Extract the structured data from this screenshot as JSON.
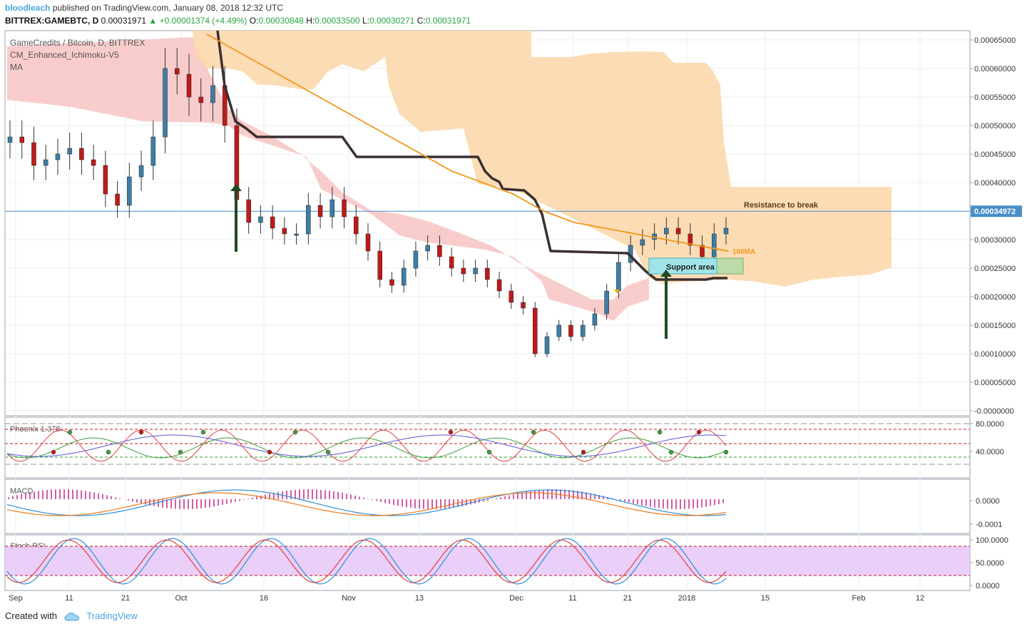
{
  "header": {
    "author": "bloodleach",
    "published_text": "published on TradingView.com, January 08, 2018 12:32 UTC"
  },
  "symbol_line": {
    "symbol": "BITTREX:GAMEBTC, D",
    "last": "0.00031971",
    "change": "+0.00001374 (+4.49%)",
    "o_label": "O:",
    "o": "0.00030848",
    "h_label": "H:",
    "h": "0.00033500",
    "l_label": "L:",
    "l": "0.00030271",
    "c_label": "C:",
    "c": "0.00031971"
  },
  "legend": {
    "title": "GameCredits / Bitcoin, D, BITTREX",
    "indicator1": "CM_Enhanced_Ichimoku-V5",
    "indicator2": "MA"
  },
  "annotations": {
    "resistance": "Resistance to break",
    "support": "Support area",
    "ma_label": "100MA"
  },
  "footer": {
    "created_with": "Created with",
    "brand": "TradingView"
  },
  "colors": {
    "up": "#3d7ea6",
    "down": "#c0191a",
    "cloud_red": "#f8c6c6",
    "cloud_orange": "#fcd6a8",
    "kijun": "#3b2f2f",
    "ma100": "#f0961a",
    "price_line": "#4a90c8"
  },
  "chart_data": [
    {
      "type": "candlestick",
      "title": "GameCredits / Bitcoin, D, BITTREX",
      "y_ticks": [
        "0.00065000",
        "0.00060000",
        "0.00055000",
        "0.00050000",
        "0.00045000",
        "0.00040000",
        "0.00035000",
        "0.00030000",
        "0.00025000",
        "0.00020000",
        "0.00015000",
        "0.00010000",
        "0.00005000",
        "-0.0000000"
      ],
      "ylim": [
        -1e-08,
        0.00066
      ],
      "current_price_label": "0.00034972",
      "current_price": 0.00034972,
      "x_tick_labels": [
        "Sep",
        "11",
        "21",
        "Oct",
        "16",
        "Nov",
        "13",
        "Dec",
        "11",
        "21",
        "2018",
        "15",
        "Feb",
        "12"
      ],
      "ohlc_close_series": [
        0.00048,
        0.00047,
        0.00043,
        0.00044,
        0.00045,
        0.00046,
        0.00044,
        0.00043,
        0.00038,
        0.00036,
        0.00041,
        0.00043,
        0.00048,
        0.0006,
        0.00059,
        0.00055,
        0.00054,
        0.00057,
        0.0005,
        0.00037,
        0.00033,
        0.00034,
        0.00032,
        0.00031,
        0.00031,
        0.00036,
        0.00034,
        0.00037,
        0.00034,
        0.00031,
        0.00028,
        0.00023,
        0.00022,
        0.00025,
        0.00028,
        0.00029,
        0.00027,
        0.00025,
        0.00024,
        0.00025,
        0.00023,
        0.00021,
        0.00019,
        0.00018,
        0.0001,
        0.00013,
        0.00015,
        0.00013,
        0.00015,
        0.00017,
        0.00021,
        0.00026,
        0.00029,
        0.0003,
        0.00031,
        0.00032,
        0.00031,
        0.00029,
        0.00027,
        0.00031,
        0.00032
      ],
      "series": [
        {
          "name": "100MA",
          "values": [
            0.00066,
            0.00063,
            0.0006,
            0.00057,
            0.00054,
            0.00051,
            0.00048,
            0.00045,
            0.00042,
            0.0004,
            0.00038,
            0.00035,
            0.00033,
            0.00032,
            0.00031,
            0.0003,
            0.00029,
            0.00028
          ]
        }
      ]
    },
    {
      "type": "line",
      "title": "Phoenix 1.378",
      "y_ticks": [
        "80.0000",
        "40.0000"
      ]
    },
    {
      "type": "line",
      "title": "MACD",
      "y_ticks": [
        "0.0000",
        "-0.0001"
      ]
    },
    {
      "type": "line",
      "title": "Stoch RSI",
      "y_ticks": [
        "100.0000",
        "50.0000",
        "0.0000"
      ]
    }
  ]
}
